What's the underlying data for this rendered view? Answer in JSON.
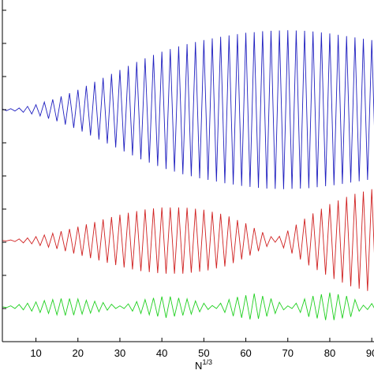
{
  "chart_data": {
    "type": "line",
    "xlabel": {
      "base": "N",
      "superscript": "1/3"
    },
    "x": [
      2,
      3,
      4,
      5,
      6,
      7,
      8,
      9,
      10,
      11,
      12,
      13,
      14,
      15,
      16,
      17,
      18,
      19,
      20,
      21,
      22,
      23,
      24,
      25,
      26,
      27,
      28,
      29,
      30,
      31,
      32,
      33,
      34,
      35,
      36,
      37,
      38,
      39,
      40,
      41,
      42,
      43,
      44,
      45,
      46,
      47,
      48,
      49,
      50,
      51,
      52,
      53,
      54,
      55,
      56,
      57,
      58,
      59,
      60,
      61,
      62,
      63,
      64,
      65,
      66,
      67,
      68,
      69,
      70,
      71,
      72,
      73,
      74,
      75,
      76,
      77,
      78,
      79,
      80,
      81,
      82,
      83,
      84,
      85,
      86,
      87,
      88,
      89,
      90,
      91,
      92
    ],
    "series": [
      {
        "color": "#2020c0",
        "values": [
          7.02,
          6.97,
          7.03,
          6.96,
          7.05,
          6.92,
          7.1,
          6.87,
          7.15,
          6.81,
          7.23,
          6.73,
          7.31,
          6.65,
          7.4,
          6.55,
          7.5,
          6.45,
          7.6,
          6.34,
          7.72,
          6.22,
          7.84,
          6.1,
          7.96,
          5.98,
          8.08,
          5.86,
          8.2,
          5.74,
          8.32,
          5.62,
          8.44,
          5.5,
          8.55,
          5.4,
          8.65,
          5.3,
          8.75,
          5.21,
          8.83,
          5.13,
          8.91,
          5.05,
          8.98,
          4.99,
          9.04,
          4.93,
          9.1,
          4.88,
          9.15,
          4.83,
          9.2,
          4.78,
          9.24,
          4.74,
          9.28,
          4.7,
          9.32,
          4.67,
          9.34,
          4.64,
          9.37,
          4.62,
          9.38,
          4.61,
          9.39,
          4.6,
          9.4,
          4.61,
          9.39,
          4.62,
          9.38,
          4.63,
          9.36,
          4.66,
          9.33,
          4.69,
          9.3,
          4.72,
          9.26,
          4.76,
          9.22,
          4.8,
          9.18,
          4.84,
          9.14,
          4.88,
          9.1,
          4.92,
          9.05
        ]
      },
      {
        "color": "#d02020",
        "values": [
          3.05,
          3.04,
          3.07,
          3.02,
          3.1,
          2.98,
          3.13,
          2.95,
          3.17,
          2.9,
          3.22,
          2.85,
          3.27,
          2.8,
          3.33,
          2.73,
          3.4,
          2.66,
          3.47,
          2.59,
          3.54,
          2.52,
          3.61,
          2.45,
          3.69,
          2.38,
          3.76,
          2.31,
          3.83,
          2.24,
          3.89,
          2.18,
          3.94,
          2.13,
          3.99,
          2.1,
          4.02,
          2.07,
          4.05,
          2.05,
          4.05,
          2.05,
          4.05,
          2.05,
          4.04,
          2.08,
          4.01,
          2.11,
          3.98,
          2.15,
          3.92,
          2.21,
          3.86,
          2.27,
          3.78,
          2.37,
          3.67,
          2.48,
          3.57,
          2.6,
          3.43,
          2.73,
          3.3,
          2.87,
          3.17,
          3.0,
          3.18,
          2.83,
          3.35,
          2.66,
          3.53,
          2.48,
          3.71,
          2.3,
          3.87,
          2.16,
          4.01,
          2.02,
          4.15,
          1.89,
          4.26,
          1.78,
          4.37,
          1.67,
          4.46,
          1.6,
          4.53,
          1.53,
          4.6,
          1.48,
          4.63
        ]
      },
      {
        "color": "#20d020",
        "values": [
          1.05,
          1.03,
          1.08,
          1.0,
          1.12,
          0.96,
          1.16,
          0.92,
          1.2,
          0.88,
          1.24,
          0.85,
          1.27,
          0.81,
          1.3,
          0.79,
          1.3,
          0.8,
          1.29,
          0.83,
          1.25,
          0.86,
          1.22,
          0.9,
          1.18,
          0.95,
          1.13,
          1.0,
          1.08,
          1.0,
          1.14,
          0.92,
          1.21,
          0.85,
          1.27,
          0.81,
          1.32,
          0.76,
          1.36,
          0.72,
          1.36,
          0.76,
          1.32,
          0.79,
          1.29,
          0.83,
          1.23,
          0.9,
          1.16,
          0.97,
          1.09,
          1.0,
          1.16,
          0.88,
          1.27,
          0.77,
          1.35,
          0.72,
          1.4,
          0.67,
          1.45,
          0.69,
          1.38,
          0.76,
          1.3,
          0.85,
          1.19,
          0.96,
          1.08,
          1.0,
          1.16,
          0.88,
          1.29,
          0.75,
          1.38,
          0.7,
          1.43,
          0.65,
          1.48,
          0.65,
          1.43,
          0.7,
          1.38,
          0.75,
          1.27,
          0.92,
          1.1,
          0.97,
          1.15,
          0.92,
          1.2
        ]
      }
    ],
    "xlim": [
      2,
      92
    ],
    "xticks": [
      10,
      20,
      30,
      40,
      50,
      60,
      70,
      80,
      90
    ],
    "ylim": [
      0,
      10.2
    ],
    "yticks": [
      1,
      2,
      3,
      4,
      5,
      6,
      7,
      8,
      9,
      10
    ]
  }
}
